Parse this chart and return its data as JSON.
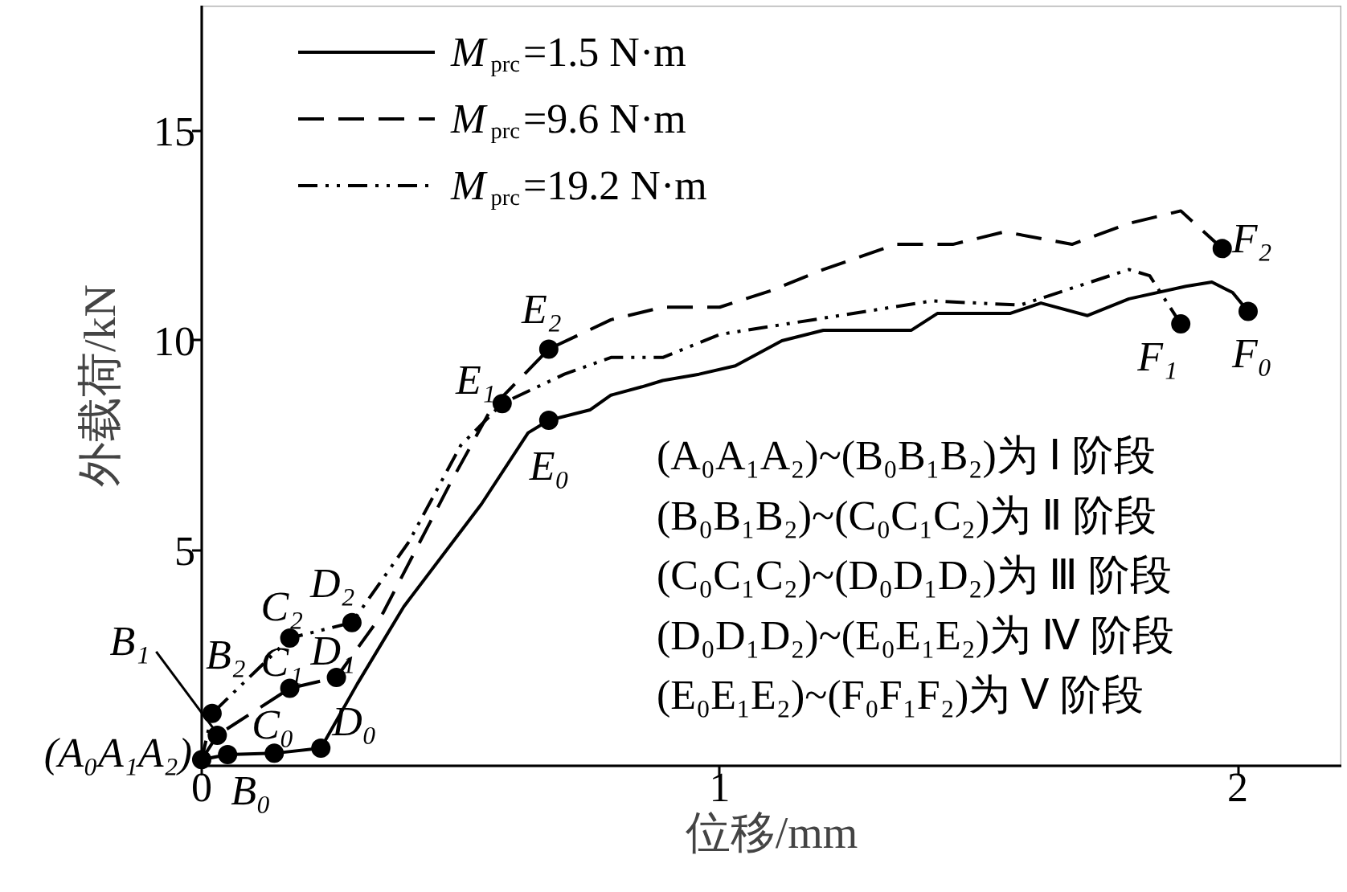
{
  "chart_data": {
    "type": "line",
    "xlabel": "位移/mm",
    "ylabel": "外载荷/kN",
    "xlim": [
      0,
      2.2
    ],
    "ylim": [
      -0.15,
      18
    ],
    "xticks": [
      0,
      1,
      2
    ],
    "yticks": [
      {
        "value": 0,
        "label": null
      },
      5,
      10,
      15
    ],
    "grid": false,
    "legend": "top left",
    "marker": "none",
    "series": [
      {
        "name": "M$_{prc}$=1.5 N·m",
        "type": "line",
        "line_style": "solid",
        "color": "#000000",
        "x": [
          0,
          0.05,
          0.14,
          0.23,
          0.3,
          0.39,
          0.54,
          0.63,
          0.67,
          0.75,
          0.79,
          0.85,
          0.89,
          0.96,
          1.03,
          1.12,
          1.2,
          1.37,
          1.42,
          1.56,
          1.62,
          1.71,
          1.79,
          1.9,
          1.95,
          1.99,
          2.02
        ],
        "values": [
          0,
          0.12,
          0.15,
          0.27,
          1.8,
          3.65,
          6.1,
          7.8,
          8.1,
          8.35,
          8.7,
          8.9,
          9.05,
          9.2,
          9.4,
          10.0,
          10.25,
          10.25,
          10.65,
          10.65,
          10.9,
          10.6,
          11.0,
          11.3,
          11.4,
          11.15,
          10.7
        ]
      },
      {
        "name": "M$_{prc}$=9.6 N·m",
        "type": "line",
        "line_style": "dashed",
        "color": "#000000",
        "x": [
          0,
          0.03,
          0.17,
          0.26,
          0.35,
          0.48,
          0.56,
          0.67,
          0.79,
          0.89,
          1.0,
          1.1,
          1.2,
          1.34,
          1.45,
          1.55,
          1.68,
          1.79,
          1.89,
          1.97
        ],
        "values": [
          0,
          0.58,
          1.7,
          1.96,
          3.5,
          6.6,
          8.4,
          9.8,
          10.5,
          10.8,
          10.8,
          11.2,
          11.7,
          12.3,
          12.3,
          12.6,
          12.3,
          12.8,
          13.1,
          12.2
        ]
      },
      {
        "name": "M$_{prc}$=19.2 N·m",
        "type": "line",
        "line_style": "dashdot",
        "color": "#000000",
        "x": [
          0,
          0.02,
          0.17,
          0.29,
          0.4,
          0.5,
          0.58,
          0.7,
          0.79,
          0.89,
          1.0,
          1.18,
          1.41,
          1.58,
          1.79,
          1.83,
          1.89
        ],
        "values": [
          0,
          1.1,
          2.9,
          3.27,
          5.2,
          7.5,
          8.5,
          9.2,
          9.6,
          9.6,
          10.15,
          10.5,
          10.95,
          10.85,
          11.7,
          11.55,
          10.4
        ]
      },
      {
        "type": "scatter",
        "marker": "circle",
        "color": "#000000",
        "x": [
          0,
          0.05,
          0.03,
          0.02,
          0.14,
          0.17,
          0.17,
          0.23,
          0.26,
          0.29,
          0.67,
          0.58,
          0.67,
          2.02,
          1.89,
          1.97
        ],
        "values": [
          0,
          0.12,
          0.58,
          1.1,
          0.15,
          1.7,
          2.9,
          0.27,
          1.96,
          3.27,
          8.1,
          8.5,
          9.8,
          10.7,
          10.4,
          12.2
        ]
      }
    ],
    "annotations": [
      {
        "text": "(A₀A₁A₂)",
        "x": 0,
        "y": 0
      },
      {
        "text": "B₀",
        "x": 0.05,
        "y": 0.12
      },
      {
        "text": "B₁",
        "x": 0.03,
        "y": 0.58
      },
      {
        "text": "B₂",
        "x": 0.02,
        "y": 1.1
      },
      {
        "text": "C₀",
        "x": 0.14,
        "y": 0.15
      },
      {
        "text": "C₁",
        "x": 0.17,
        "y": 1.7
      },
      {
        "text": "C₂",
        "x": 0.17,
        "y": 2.9
      },
      {
        "text": "D₀",
        "x": 0.23,
        "y": 0.27
      },
      {
        "text": "D₁",
        "x": 0.26,
        "y": 1.96
      },
      {
        "text": "D₂",
        "x": 0.29,
        "y": 3.27
      },
      {
        "text": "E₀",
        "x": 0.67,
        "y": 8.1
      },
      {
        "text": "E₁",
        "x": 0.58,
        "y": 8.5
      },
      {
        "text": "E₂",
        "x": 0.67,
        "y": 9.8
      },
      {
        "text": "F₀",
        "x": 2.02,
        "y": 10.7
      },
      {
        "text": "F₁",
        "x": 1.89,
        "y": 10.4
      },
      {
        "text": "F₂",
        "x": 1.97,
        "y": 12.2
      },
      "(A₀A₁A₂)~(B₀B₁B₂)为 Ⅰ 阶段",
      "(B₀B₁B₂)~(C₀C₁C₂)为 Ⅱ 阶段",
      "(C₀C₁C₂)~(D₀D₁D₂)为 Ⅲ 阶段",
      "(D₀D₁D₂)~(E₀E₁E₂)为 Ⅳ 阶段",
      "(E₀E₁E₂)~(F₀F₁F₂)为 Ⅴ 阶段"
    ]
  }
}
